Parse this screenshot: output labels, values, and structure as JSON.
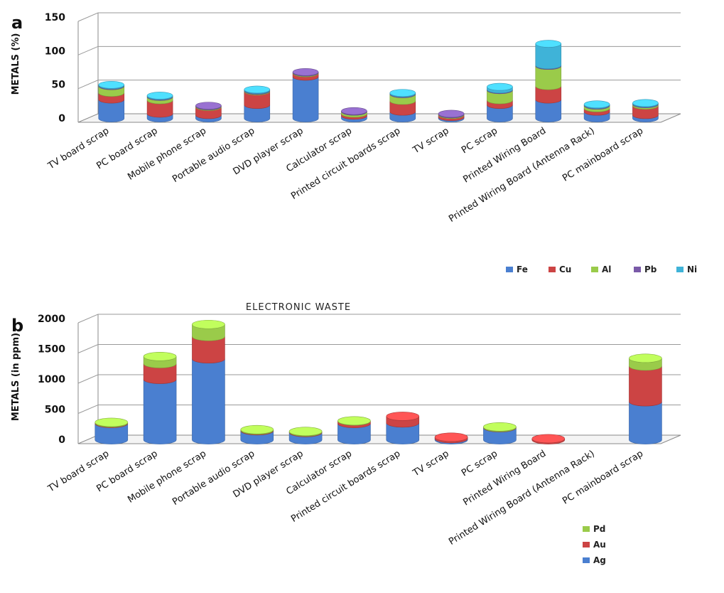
{
  "chart_data": [
    {
      "type": "bar",
      "stacked": true,
      "panel_label": "a",
      "ylabel": "METALS (%)",
      "xlabel": "ELECTRONIC WASTE",
      "ylim": [
        0,
        150
      ],
      "yticks": [
        "0",
        "50",
        "100",
        "150"
      ],
      "grid": true,
      "legend_position": "bottom-right, horizontal",
      "categories": [
        "TV board scrap",
        "PC board scrap",
        "Mobile phone scrap",
        "Portable audio scrap",
        "DVD player scrap",
        "Calculator scrap",
        "Printed circuit boards scrap",
        "TV scrap",
        "PC scrap",
        "Printed Wiring Board",
        "Printed Wiring Board (Antenna Rack)",
        "PC mainboard scrap"
      ],
      "series": [
        {
          "name": "Fe",
          "color": "#4a7fd0",
          "values": [
            28,
            7,
            5,
            20,
            62,
            4,
            10,
            2,
            20,
            28,
            10,
            5
          ]
        },
        {
          "name": "Cu",
          "color": "#cc4444",
          "values": [
            10,
            20,
            12,
            20,
            5,
            3,
            16,
            3,
            7,
            20,
            5,
            14
          ]
        },
        {
          "name": "Al",
          "color": "#9acb4a",
          "values": [
            10,
            5,
            1,
            1,
            1,
            3,
            10,
            1,
            15,
            30,
            4,
            2
          ]
        },
        {
          "name": "Pb",
          "color": "#7a5aa8",
          "values": [
            1,
            1,
            1,
            1,
            1,
            1,
            1,
            1,
            1,
            1,
            1,
            1
          ]
        },
        {
          "name": "Ni",
          "color": "#3fb3d8",
          "values": [
            1,
            1,
            0,
            1,
            0,
            0,
            1,
            0,
            4,
            32,
            1,
            1
          ]
        }
      ]
    },
    {
      "type": "bar",
      "stacked": true,
      "panel_label": "b",
      "ylabel": "METALS (in ppm)",
      "ylim": [
        0,
        2000
      ],
      "yticks": [
        "0",
        "500",
        "1000",
        "1500",
        "2000"
      ],
      "grid": true,
      "legend_position": "bottom-right, vertical",
      "categories": [
        "TV board scrap",
        "PC board scrap",
        "Mobile phone scrap",
        "Portable audio scrap",
        "DVD player scrap",
        "Calculator scrap",
        "Printed circuit boards scrap",
        "TV scrap",
        "PC scrap",
        "Printed Wiring Board",
        "Printed Wiring Board (Antenna Rack)",
        "PC mainboard scrap"
      ],
      "series": [
        {
          "name": "Ag",
          "color": "#4a7fd0",
          "values": [
            270,
            1000,
            1340,
            150,
            120,
            270,
            280,
            20,
            200,
            0,
            0,
            630
          ]
        },
        {
          "name": "Au",
          "color": "#cc4444",
          "values": [
            10,
            260,
            370,
            10,
            10,
            40,
            110,
            25,
            5,
            20,
            0,
            590
          ]
        },
        {
          "name": "Pd",
          "color": "#9acb4a",
          "values": [
            10,
            120,
            200,
            10,
            10,
            5,
            0,
            0,
            10,
            0,
            0,
            130
          ]
        }
      ]
    }
  ]
}
